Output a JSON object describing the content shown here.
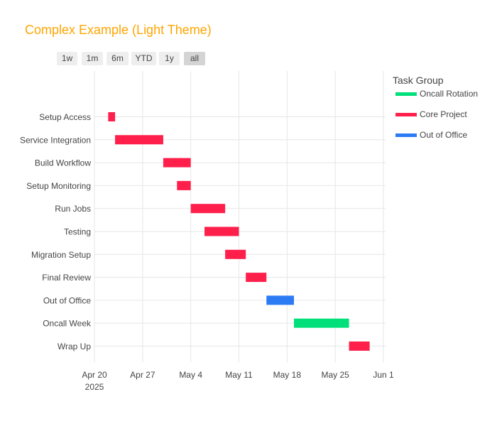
{
  "chart_data": {
    "type": "gantt",
    "title": "Complex Example (Light Theme)",
    "range_selector": {
      "buttons": [
        "1w",
        "1m",
        "6m",
        "YTD",
        "1y",
        "all"
      ],
      "active": "all"
    },
    "legend": {
      "title": "Task Group",
      "placement": "top-right",
      "entries": [
        {
          "name": "Oncall Rotation",
          "color": "#00e07a"
        },
        {
          "name": "Core Project",
          "color": "#ff1f4b"
        },
        {
          "name": "Out of Office",
          "color": "#2d7bf4"
        }
      ]
    },
    "x_axis": {
      "type": "date",
      "range": [
        "2025-04-20",
        "2025-06-01"
      ],
      "ticks": [
        {
          "date": "2025-04-20",
          "label": "Apr 20",
          "sublabel": "2025"
        },
        {
          "date": "2025-04-27",
          "label": "Apr 27"
        },
        {
          "date": "2025-05-04",
          "label": "May 4"
        },
        {
          "date": "2025-05-11",
          "label": "May 11"
        },
        {
          "date": "2025-05-18",
          "label": "May 18"
        },
        {
          "date": "2025-05-25",
          "label": "May 25"
        },
        {
          "date": "2025-06-01",
          "label": "Jun 1"
        }
      ]
    },
    "grid": true,
    "tasks": [
      {
        "task": "Setup Access",
        "start": "2025-04-22",
        "end": "2025-04-23",
        "group": "Core Project"
      },
      {
        "task": "Service Integration",
        "start": "2025-04-23",
        "end": "2025-04-30",
        "group": "Core Project"
      },
      {
        "task": "Build Workflow",
        "start": "2025-04-30",
        "end": "2025-05-04",
        "group": "Core Project"
      },
      {
        "task": "Setup Monitoring",
        "start": "2025-05-02",
        "end": "2025-05-04",
        "group": "Core Project"
      },
      {
        "task": "Run Jobs",
        "start": "2025-05-04",
        "end": "2025-05-09",
        "group": "Core Project"
      },
      {
        "task": "Testing",
        "start": "2025-05-06",
        "end": "2025-05-11",
        "group": "Core Project"
      },
      {
        "task": "Migration Setup",
        "start": "2025-05-09",
        "end": "2025-05-12",
        "group": "Core Project"
      },
      {
        "task": "Final Review",
        "start": "2025-05-12",
        "end": "2025-05-15",
        "group": "Core Project"
      },
      {
        "task": "Out of Office",
        "start": "2025-05-15",
        "end": "2025-05-19",
        "group": "Out of Office"
      },
      {
        "task": "Oncall Week",
        "start": "2025-05-19",
        "end": "2025-05-27",
        "group": "Oncall Rotation"
      },
      {
        "task": "Wrap Up",
        "start": "2025-05-27",
        "end": "2025-05-30",
        "group": "Core Project"
      }
    ]
  }
}
